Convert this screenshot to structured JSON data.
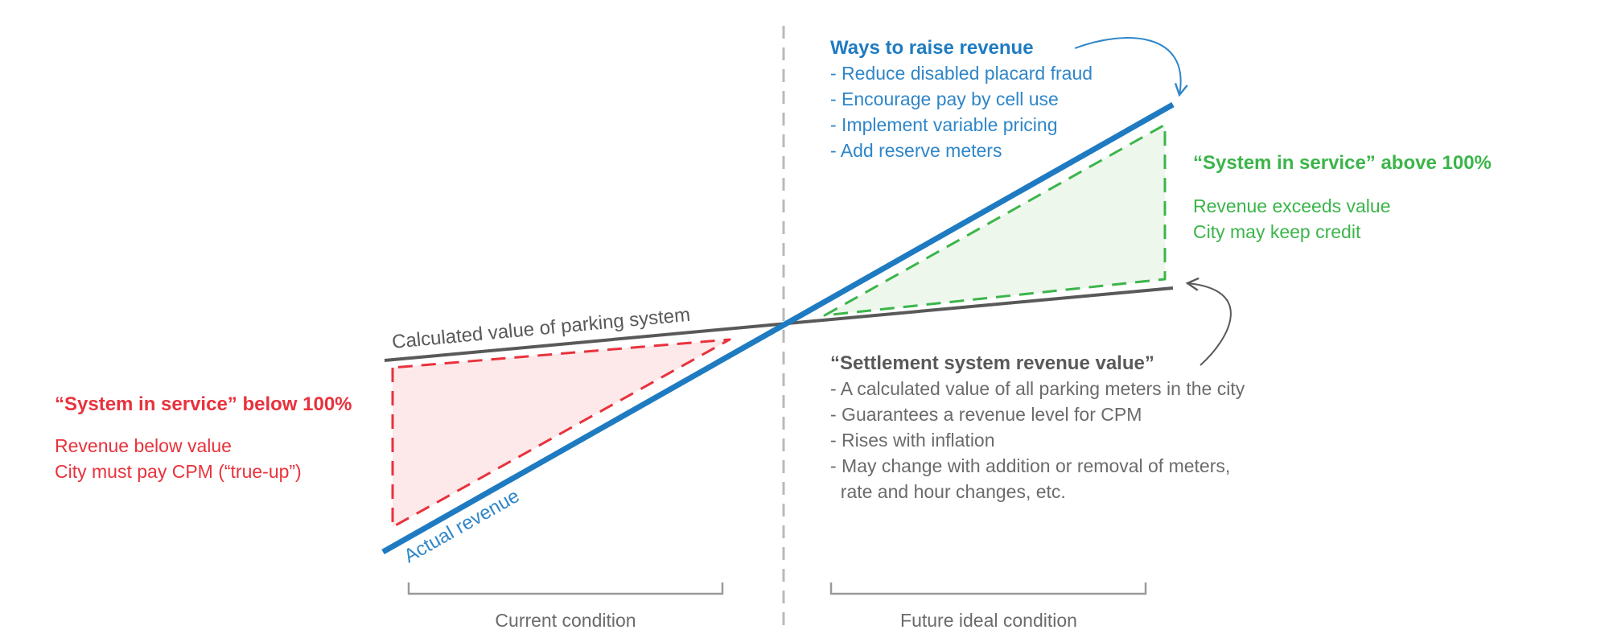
{
  "colors": {
    "blue": "#1f7bc1",
    "blue_text": "#2f86c8",
    "red": "#e8323c",
    "red_fill": "#fde8ea",
    "green": "#3bb54a",
    "green_fill": "#edf7ec",
    "gray": "#595959",
    "gray_text": "#6b6b6b",
    "divider": "#b9b9b9"
  },
  "lines": {
    "calculated_label": "Calculated value of parking system",
    "actual_label": "Actual revenue"
  },
  "below": {
    "title": "“System in service” below 100%",
    "line1": "Revenue below value",
    "line2": "City must pay CPM (“true-up”)"
  },
  "above": {
    "title": "“System in service” above 100%",
    "line1": "Revenue exceeds value",
    "line2": "City may keep credit"
  },
  "raise": {
    "title": "Ways to raise revenue",
    "items": [
      "- Reduce disabled placard fraud",
      "- Encourage pay by cell use",
      "- Implement variable pricing",
      "- Add reserve meters"
    ]
  },
  "settlement": {
    "title": "“Settlement system revenue value”",
    "items": [
      "- A calculated value of all parking meters in the city",
      "- Guarantees a revenue level for CPM",
      "- Rises with inflation",
      "- May change with addition or removal of meters,",
      "  rate and hour changes, etc."
    ]
  },
  "conditions": {
    "current": "Current condition",
    "future": "Future ideal condition"
  }
}
